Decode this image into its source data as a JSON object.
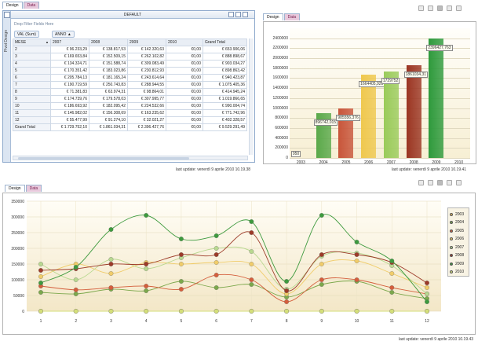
{
  "pivot": {
    "tabs": [
      "Design",
      "Data"
    ],
    "side_label": "Pivot Design",
    "title": "DEFAULT",
    "drop_hint": "Drop Filter Fields Here",
    "data_field": "VAL (Sum)",
    "column_field": "ANNO",
    "row_field": "MESE",
    "columns": [
      "2007",
      "2008",
      "2009",
      "2010",
      "Grand Total"
    ],
    "rows": [
      {
        "m": "2",
        "c": [
          "€ 96.233,29",
          "€ 138.817,53",
          "€ 142.320,63",
          "€0,00",
          "€ 653.906,06"
        ]
      },
      {
        "m": "3",
        "c": [
          "€ 169.653,84",
          "€ 152.509,15",
          "€ 262.102,82",
          "€0,00",
          "€ 888.898,67"
        ]
      },
      {
        "m": "4",
        "c": [
          "€ 134.324,71",
          "€ 151.588,74",
          "€ 309.083,49",
          "€0,00",
          "€ 903.034,27"
        ]
      },
      {
        "m": "5",
        "c": [
          "€ 170.351,42",
          "€ 183.023,86",
          "€ 230.812,93",
          "€0,00",
          "€ 898.863,42"
        ]
      },
      {
        "m": "6",
        "c": [
          "€ 205.784,13",
          "€ 181.165,24",
          "€ 243.614,64",
          "€0,00",
          "€ 940.423,87"
        ]
      },
      {
        "m": "7",
        "c": [
          "€ 190.719,59",
          "€ 250.743,83",
          "€ 288.944,55",
          "€0,00",
          "€ 1.075.405,36"
        ]
      },
      {
        "m": "8",
        "c": [
          "€ 71.381,83",
          "€ 63.974,31",
          "€ 98.864,01",
          "€0,00",
          "€ 414.945,24"
        ]
      },
      {
        "m": "9",
        "c": [
          "€ 174.739,76",
          "€ 179.578,03",
          "€ 307.995,77",
          "€0,00",
          "€ 1.019.866,65"
        ]
      },
      {
        "m": "10",
        "c": [
          "€ 186.693,92",
          "€ 182.095,42",
          "€ 224.532,66",
          "€0,00",
          "€ 990.004,74"
        ]
      },
      {
        "m": "11",
        "c": [
          "€ 146.982,02",
          "€ 156.308,69",
          "€ 163.235,62",
          "€0,00",
          "€ 771.742,96"
        ]
      },
      {
        "m": "12",
        "c": [
          "€ 55.477,99",
          "€ 91.274,10",
          "€ 32.021,27",
          "€0,00",
          "€ 402.328,57"
        ]
      }
    ],
    "total_label": "Grand Total",
    "totals": [
      "€ 1.729.752,10",
      "€ 1.861.034,31",
      "€ 2.396.427,76",
      "€0,00",
      "€ 9.529.291,49"
    ],
    "timestamp": "last update: venerdì 9 aprile 2010 10.19.38"
  },
  "bar_panel": {
    "tabs": [
      "Design",
      "Data"
    ],
    "timestamp": "last update: venerdì 9 aprile 2010 10.19.41"
  },
  "line_panel": {
    "tabs": [
      "Design",
      "Data"
    ],
    "timestamp": "last update: venerdì 9 aprile 2010 10.19.43"
  },
  "chart_data": [
    {
      "type": "bar",
      "categories": [
        "2003",
        "2004",
        "2005",
        "2006",
        "2007",
        "2008",
        "2009",
        "2010"
      ],
      "values": [
        950,
        896742.015,
        985556.376,
        1664405.929,
        1729752,
        1861034.31,
        2396427.763,
        0
      ],
      "data_labels": [
        "950",
        "896742,015",
        "985556,376",
        "1664405,929",
        "1729752",
        "1861034,31",
        "2396427,763",
        ""
      ],
      "colors": [
        "#f2d890",
        "#5aa94a",
        "#c8553a",
        "#efc84e",
        "#9acb5a",
        "#9b3522",
        "#2e9a3c",
        "#d9e08a"
      ],
      "ylim": [
        0,
        2600000
      ],
      "yticks": [
        "0",
        "200000",
        "400000",
        "600000",
        "800000",
        "1000000",
        "1200000",
        "1400000",
        "1600000",
        "1800000",
        "2000000",
        "2200000",
        "2400000"
      ],
      "grid": true
    },
    {
      "type": "line",
      "x": [
        "1",
        "2",
        "3",
        "4",
        "5",
        "6",
        "7",
        "8",
        "9",
        "10",
        "11",
        "12"
      ],
      "ylim": [
        0,
        350000
      ],
      "yticks": [
        "0",
        "50000",
        "100000",
        "150000",
        "200000",
        "250000",
        "300000",
        "350000"
      ],
      "series": [
        {
          "name": "2003",
          "color": "#e4b55a",
          "values": [
            0,
            0,
            0,
            0,
            0,
            0,
            0,
            0,
            0,
            0,
            0,
            0
          ]
        },
        {
          "name": "2004",
          "color": "#7ca84c",
          "values": [
            60000,
            55000,
            70000,
            65000,
            95000,
            75000,
            85000,
            45000,
            85000,
            95000,
            60000,
            40000
          ]
        },
        {
          "name": "2005",
          "color": "#d45e3c",
          "values": [
            80000,
            68000,
            75000,
            80000,
            70000,
            115000,
            100000,
            30000,
            100000,
            100000,
            75000,
            55000
          ]
        },
        {
          "name": "2006",
          "color": "#f0cc6a",
          "values": [
            110000,
            150000,
            120000,
            155000,
            150000,
            155000,
            150000,
            55000,
            150000,
            160000,
            120000,
            75000
          ]
        },
        {
          "name": "2007",
          "color": "#b8d890",
          "values": [
            150000,
            100000,
            165000,
            135000,
            170000,
            200000,
            190000,
            70000,
            175000,
            185000,
            145000,
            55000
          ]
        },
        {
          "name": "2008",
          "color": "#9c3a28",
          "values": [
            130000,
            135000,
            150000,
            150000,
            180000,
            180000,
            250000,
            65000,
            180000,
            180000,
            155000,
            90000
          ]
        },
        {
          "name": "2009",
          "color": "#3e9a3e",
          "values": [
            90000,
            140000,
            260000,
            305000,
            230000,
            240000,
            285000,
            95000,
            305000,
            220000,
            160000,
            30000
          ]
        },
        {
          "name": "2010",
          "color": "#d4df7a",
          "values": [
            0,
            0,
            0,
            0,
            0,
            0,
            0,
            0,
            0,
            0,
            0,
            0
          ]
        }
      ],
      "legend_position": "right",
      "grid": true
    }
  ]
}
